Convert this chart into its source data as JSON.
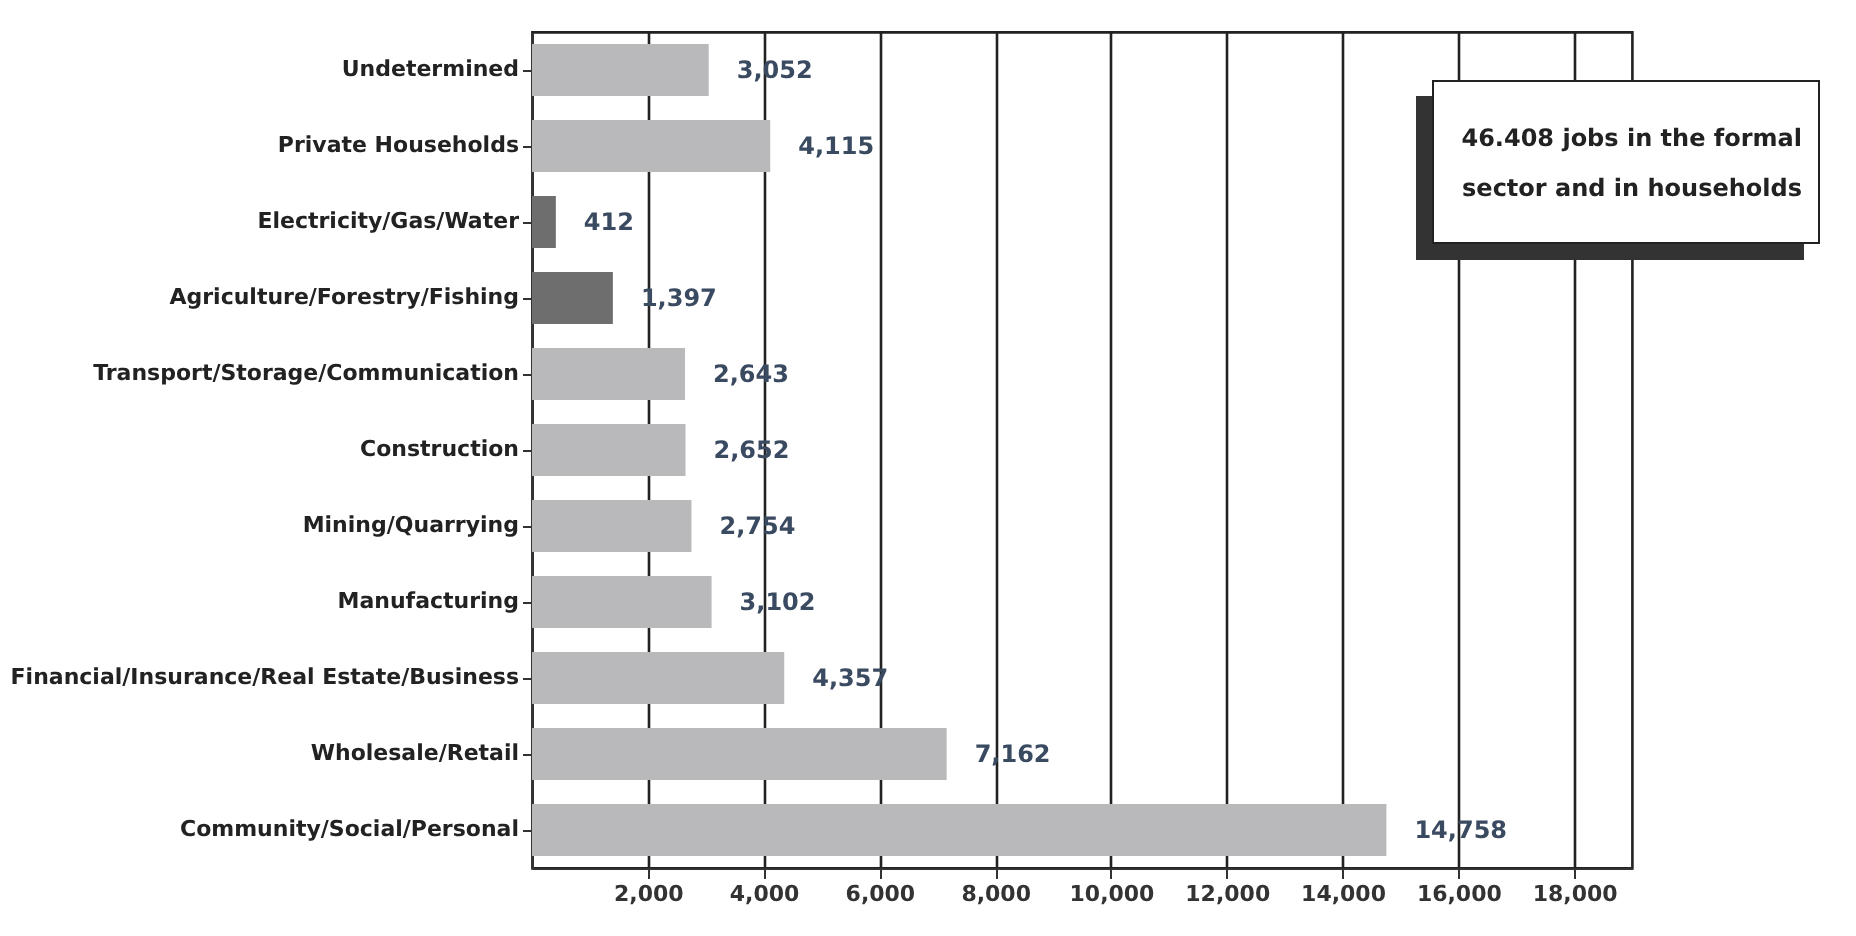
{
  "chart_data": {
    "type": "bar",
    "orientation": "horizontal",
    "categories": [
      "Undetermined",
      "Private Households",
      "Electricity/Gas/Water",
      "Agriculture/Forestry/Fishing",
      "Transport/Storage/Communication",
      "Construction",
      "Mining/Quarrying",
      "Manufacturing",
      "Financial/Insurance/Real Estate/Business",
      "Wholesale/Retail",
      "Community/Social/Personal"
    ],
    "values": [
      3052,
      4115,
      412,
      1397,
      2643,
      2652,
      2754,
      3102,
      4357,
      7162,
      14758
    ],
    "value_labels": [
      "3,052",
      "4,115",
      "412",
      "1,397",
      "2,643",
      "2,652",
      "2,754",
      "3,102",
      "4,357",
      "7,162",
      "14,758"
    ],
    "colors": [
      "#b9b9bc",
      "#b9b9bc",
      "#6e6e6e",
      "#6e6e6e",
      "#b9b9bc",
      "#b9b9bc",
      "#b9b9bc",
      "#b9b9bc",
      "#b9b9bc",
      "#b9b9bc",
      "#b9b9bc"
    ],
    "xlim": [
      0,
      19000
    ],
    "xticks": [
      {
        "value": 2000,
        "label": "2,000"
      },
      {
        "value": 4000,
        "label": "4,000"
      },
      {
        "value": 6000,
        "label": "6,000"
      },
      {
        "value": 8000,
        "label": "8,000"
      },
      {
        "value": 10000,
        "label": "10,000"
      },
      {
        "value": 12000,
        "label": "12,000"
      },
      {
        "value": 14000,
        "label": "14,000"
      },
      {
        "value": 16000,
        "label": "16,000"
      },
      {
        "value": 18000,
        "label": "18,000"
      }
    ],
    "grid": "x",
    "annotations": [
      "46.408 jobs in the formal sector and in households"
    ]
  }
}
